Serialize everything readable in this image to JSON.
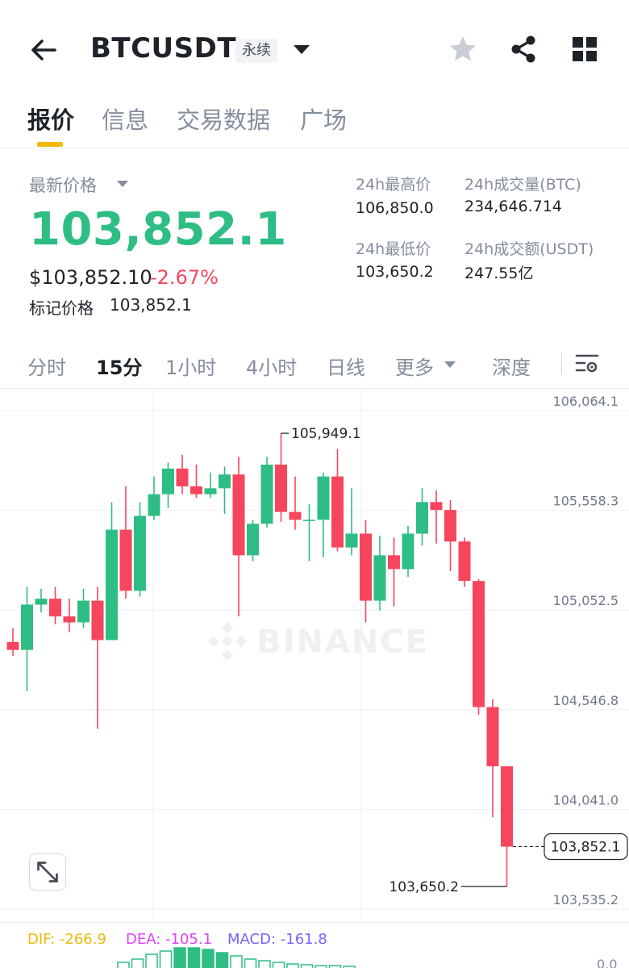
{
  "header": {
    "symbol": "BTCUSDT",
    "contract_type": "永续"
  },
  "tabs": [
    {
      "label": "报价",
      "active": true
    },
    {
      "label": "信息",
      "active": false
    },
    {
      "label": "交易数据",
      "active": false
    },
    {
      "label": "广场",
      "active": false
    }
  ],
  "ticker": {
    "price_label": "最新价格",
    "last_price": "103,852.1",
    "usd_price": "$103,852.10",
    "change_pct": "-2.67%",
    "mark_label": "标记价格",
    "mark_price": "103,852.1",
    "high_label": "24h最高价",
    "high_value": "106,850.0",
    "low_label": "24h最低价",
    "low_value": "103,650.2",
    "vol_btc_label": "24h成交量(BTC)",
    "vol_btc_value": "234,646.714",
    "vol_usdt_label": "24h成交额(USDT)",
    "vol_usdt_value": "247.55亿"
  },
  "intervals": {
    "items": [
      "分时",
      "15分",
      "1小时",
      "4小时",
      "日线",
      "更多",
      "深度"
    ],
    "active": "15分"
  },
  "watermark": "BINANCE",
  "macd": {
    "dif": "DIF: -266.9",
    "dea": "DEA: -105.1",
    "macd": "MACD: -161.8",
    "zero": "0.0"
  },
  "colors": {
    "up": "#2ebd85",
    "down": "#f6465d",
    "accent": "#f0b90b"
  },
  "chart_data": {
    "type": "candlestick",
    "interval": "15分",
    "y_ticks": [
      "106,064.1",
      "105,558.3",
      "105,052.5",
      "104,546.8",
      "104,041.0",
      "103,535.2"
    ],
    "ylim": [
      103535.2,
      106064.1
    ],
    "high_marker": "105,949.1",
    "low_marker": "103,650.2",
    "last_price_label": "103,852.1",
    "last_price": 103852.1,
    "candles": [
      {
        "o": 104890,
        "h": 104960,
        "l": 104820,
        "c": 104850
      },
      {
        "o": 104850,
        "h": 105170,
        "l": 104640,
        "c": 105080
      },
      {
        "o": 105080,
        "h": 105160,
        "l": 105040,
        "c": 105110
      },
      {
        "o": 105110,
        "h": 105170,
        "l": 104980,
        "c": 105020
      },
      {
        "o": 105020,
        "h": 105110,
        "l": 104940,
        "c": 104990
      },
      {
        "o": 104990,
        "h": 105160,
        "l": 104960,
        "c": 105100
      },
      {
        "o": 105100,
        "h": 105170,
        "l": 104450,
        "c": 104900
      },
      {
        "o": 104900,
        "h": 105600,
        "l": 104900,
        "c": 105460
      },
      {
        "o": 105460,
        "h": 105680,
        "l": 105110,
        "c": 105150
      },
      {
        "o": 105150,
        "h": 105600,
        "l": 105120,
        "c": 105530
      },
      {
        "o": 105530,
        "h": 105730,
        "l": 105510,
        "c": 105640
      },
      {
        "o": 105640,
        "h": 105800,
        "l": 105570,
        "c": 105770
      },
      {
        "o": 105770,
        "h": 105840,
        "l": 105640,
        "c": 105680
      },
      {
        "o": 105680,
        "h": 105790,
        "l": 105620,
        "c": 105640
      },
      {
        "o": 105640,
        "h": 105750,
        "l": 105620,
        "c": 105670
      },
      {
        "o": 105670,
        "h": 105780,
        "l": 105540,
        "c": 105740
      },
      {
        "o": 105740,
        "h": 105830,
        "l": 105020,
        "c": 105330
      },
      {
        "o": 105330,
        "h": 105510,
        "l": 105300,
        "c": 105490
      },
      {
        "o": 105490,
        "h": 105830,
        "l": 105470,
        "c": 105790
      },
      {
        "o": 105790,
        "h": 105949.1,
        "l": 105500,
        "c": 105550
      },
      {
        "o": 105550,
        "h": 105730,
        "l": 105460,
        "c": 105510
      },
      {
        "o": 105510,
        "h": 105590,
        "l": 105300,
        "c": 105510
      },
      {
        "o": 105510,
        "h": 105750,
        "l": 105320,
        "c": 105730
      },
      {
        "o": 105730,
        "h": 105870,
        "l": 105350,
        "c": 105370
      },
      {
        "o": 105370,
        "h": 105670,
        "l": 105330,
        "c": 105440
      },
      {
        "o": 105440,
        "h": 105510,
        "l": 104990,
        "c": 105100
      },
      {
        "o": 105100,
        "h": 105430,
        "l": 105050,
        "c": 105330
      },
      {
        "o": 105330,
        "h": 105420,
        "l": 105070,
        "c": 105260
      },
      {
        "o": 105260,
        "h": 105480,
        "l": 105220,
        "c": 105440
      },
      {
        "o": 105440,
        "h": 105670,
        "l": 105380,
        "c": 105600
      },
      {
        "o": 105600,
        "h": 105660,
        "l": 105390,
        "c": 105560
      },
      {
        "o": 105560,
        "h": 105610,
        "l": 105250,
        "c": 105400
      },
      {
        "o": 105400,
        "h": 105420,
        "l": 105170,
        "c": 105200
      },
      {
        "o": 105200,
        "h": 105210,
        "l": 104520,
        "c": 104560
      },
      {
        "o": 104560,
        "h": 104600,
        "l": 104000,
        "c": 104260
      },
      {
        "o": 104260,
        "h": 104260,
        "l": 103650.2,
        "c": 103852.1
      }
    ]
  }
}
